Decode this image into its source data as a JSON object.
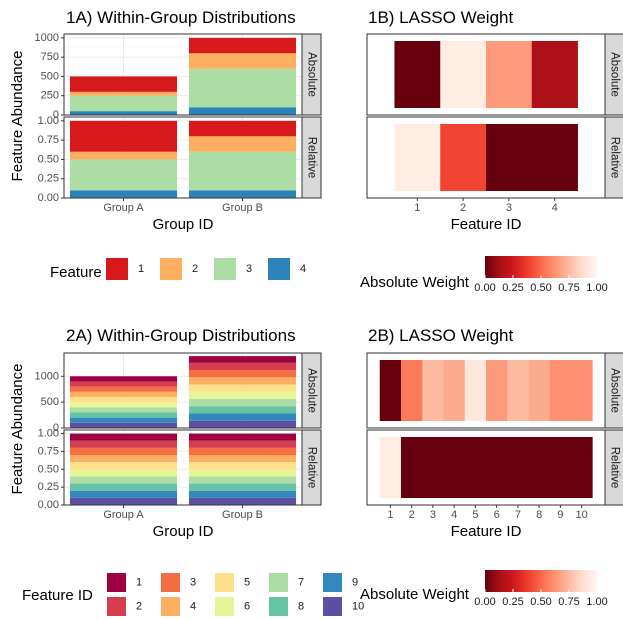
{
  "chart_data": [
    {
      "panel": "1A",
      "type": "bar",
      "stacked": true,
      "title": "1A) Within-Group Distributions",
      "xlabel": "Group ID",
      "ylabel": "Feature Abundance",
      "categories": [
        "Group A",
        "Group B"
      ],
      "facets": [
        {
          "strip": "Absolute",
          "ylim": [
            0,
            1050
          ],
          "ticks": [
            0,
            250,
            500,
            750,
            1000
          ],
          "tick_labels": [
            "0",
            "250",
            "500",
            "750",
            "1000"
          ],
          "series": [
            {
              "name": "1",
              "values": [
                200,
                200
              ]
            },
            {
              "name": "2",
              "values": [
                50,
                200
              ]
            },
            {
              "name": "3",
              "values": [
                200,
                500
              ]
            },
            {
              "name": "4",
              "values": [
                50,
                100
              ]
            }
          ]
        },
        {
          "strip": "Relative",
          "ylim": [
            0,
            1.05
          ],
          "ticks": [
            0,
            0.25,
            0.5,
            0.75,
            1
          ],
          "tick_labels": [
            "0.00",
            "0.25",
            "0.50",
            "0.75",
            "1.00"
          ],
          "series": [
            {
              "name": "1",
              "values": [
                0.4,
                0.2
              ]
            },
            {
              "name": "2",
              "values": [
                0.1,
                0.2
              ]
            },
            {
              "name": "3",
              "values": [
                0.4,
                0.5
              ]
            },
            {
              "name": "4",
              "values": [
                0.1,
                0.1
              ]
            }
          ]
        }
      ],
      "legend": {
        "title": "Feature ID",
        "position": "bottom",
        "entries": [
          "1",
          "2",
          "3",
          "4"
        ],
        "colors": [
          "#d7191c",
          "#fdae61",
          "#abdda4",
          "#2b83ba"
        ]
      }
    },
    {
      "panel": "1B",
      "type": "heatmap",
      "title": "1B) LASSO Weight",
      "xlabel": "Feature ID",
      "x": [
        "1",
        "2",
        "3",
        "4"
      ],
      "rows": [
        {
          "strip": "Absolute",
          "values": [
            1.0,
            0.05,
            0.35,
            0.85
          ]
        },
        {
          "strip": "Relative",
          "values": [
            0.05,
            0.6,
            1.0,
            1.0
          ]
        }
      ],
      "colorbar": {
        "title": "Absolute Weight",
        "ticks": [
          0,
          0.25,
          0.5,
          0.75,
          1
        ],
        "tick_labels": [
          "0.00",
          "0.25",
          "0.50",
          "0.75",
          "1.00"
        ],
        "low_color": "#67000d",
        "high_color": "#fff5f0"
      }
    },
    {
      "panel": "2A",
      "type": "bar",
      "stacked": true,
      "title": "2A) Within-Group Distributions",
      "xlabel": "Group ID",
      "ylabel": "Feature Abundance",
      "categories": [
        "Group A",
        "Group B"
      ],
      "facets": [
        {
          "strip": "Absolute",
          "ylim": [
            0,
            1450
          ],
          "ticks": [
            0,
            500,
            1000
          ],
          "tick_labels": [
            "0",
            "500",
            "1000"
          ],
          "series": [
            {
              "name": "1",
              "values": [
                100,
                130
              ]
            },
            {
              "name": "2",
              "values": [
                100,
                140
              ]
            },
            {
              "name": "3",
              "values": [
                100,
                140
              ]
            },
            {
              "name": "4",
              "values": [
                100,
                140
              ]
            },
            {
              "name": "5",
              "values": [
                100,
                140
              ]
            },
            {
              "name": "6",
              "values": [
                100,
                140
              ]
            },
            {
              "name": "7",
              "values": [
                100,
                140
              ]
            },
            {
              "name": "8",
              "values": [
                100,
                140
              ]
            },
            {
              "name": "9",
              "values": [
                100,
                140
              ]
            },
            {
              "name": "10",
              "values": [
                100,
                140
              ]
            }
          ]
        },
        {
          "strip": "Relative",
          "ylim": [
            0,
            1.05
          ],
          "ticks": [
            0,
            0.25,
            0.5,
            0.75,
            1
          ],
          "tick_labels": [
            "0.00",
            "0.25",
            "0.50",
            "0.75",
            "1.00"
          ],
          "series": [
            {
              "name": "1",
              "values": [
                0.1,
                0.1
              ]
            },
            {
              "name": "2",
              "values": [
                0.1,
                0.1
              ]
            },
            {
              "name": "3",
              "values": [
                0.1,
                0.1
              ]
            },
            {
              "name": "4",
              "values": [
                0.1,
                0.1
              ]
            },
            {
              "name": "5",
              "values": [
                0.1,
                0.1
              ]
            },
            {
              "name": "6",
              "values": [
                0.1,
                0.1
              ]
            },
            {
              "name": "7",
              "values": [
                0.1,
                0.1
              ]
            },
            {
              "name": "8",
              "values": [
                0.1,
                0.1
              ]
            },
            {
              "name": "9",
              "values": [
                0.1,
                0.1
              ]
            },
            {
              "name": "10",
              "values": [
                0.1,
                0.1
              ]
            }
          ]
        }
      ],
      "legend": {
        "title": "Feature ID",
        "position": "bottom",
        "entries": [
          "1",
          "2",
          "3",
          "4",
          "5",
          "6",
          "7",
          "8",
          "9",
          "10"
        ],
        "colors": [
          "#9e0142",
          "#d53e4f",
          "#f46d43",
          "#fdae61",
          "#fee08b",
          "#e6f598",
          "#abdda4",
          "#66c2a5",
          "#3288bd",
          "#5e4fa2"
        ]
      }
    },
    {
      "panel": "2B",
      "type": "heatmap",
      "title": "2B) LASSO Weight",
      "xlabel": "Feature ID",
      "x": [
        "1",
        "2",
        "3",
        "4",
        "5",
        "6",
        "7",
        "8",
        "9",
        "10"
      ],
      "rows": [
        {
          "strip": "Absolute",
          "values": [
            1.0,
            0.45,
            0.25,
            0.3,
            0.08,
            0.35,
            0.25,
            0.3,
            0.38,
            0.38
          ]
        },
        {
          "strip": "Relative",
          "values": [
            0.05,
            1.0,
            1.0,
            1.0,
            1.0,
            1.0,
            1.0,
            1.0,
            1.0,
            1.0
          ]
        }
      ],
      "colorbar": {
        "title": "Absolute Weight",
        "ticks": [
          0,
          0.25,
          0.5,
          0.75,
          1
        ],
        "tick_labels": [
          "0.00",
          "0.25",
          "0.50",
          "0.75",
          "1.00"
        ],
        "low_color": "#67000d",
        "high_color": "#fff5f0"
      }
    }
  ]
}
